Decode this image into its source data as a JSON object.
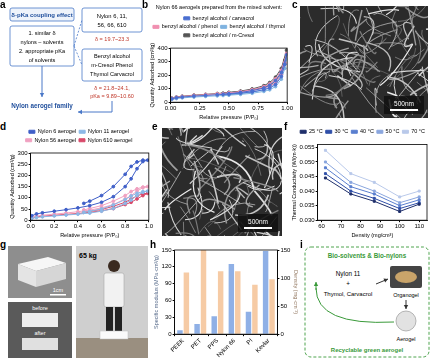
{
  "chart_data": [
    {
      "panel": "b",
      "type": "line",
      "title": "Nylon 66 aerogels prepared from the mixed solvent:",
      "x_label": "Relative pressure (P/P₀)",
      "y_label": "Quantity Adsorbed (cm³/g)",
      "x": [
        0.01,
        0.05,
        0.1,
        0.2,
        0.3,
        0.4,
        0.5,
        0.6,
        0.7,
        0.8,
        0.85,
        0.9,
        0.95,
        0.98,
        0.995,
        0.95,
        0.9,
        0.85,
        0.8,
        0.7,
        0.6,
        0.5,
        0.45
      ],
      "series": [
        {
          "name": "benzyl alcohol / carvacrol",
          "color": "#4a6fd0",
          "values": [
            25,
            33,
            38,
            45,
            50,
            55,
            60,
            67,
            76,
            92,
            105,
            130,
            190,
            280,
            350,
            220,
            160,
            125,
            105,
            85,
            72,
            63,
            58
          ]
        },
        {
          "name": "benzyl alcohol / phenol",
          "color": "#f08fb0",
          "values": [
            28,
            36,
            42,
            50,
            56,
            62,
            68,
            76,
            86,
            104,
            118,
            145,
            205,
            290,
            360,
            235,
            172,
            135,
            115,
            92,
            78,
            68,
            62
          ]
        },
        {
          "name": "benzyl alcohol / thymol",
          "color": "#7fb3e0",
          "values": [
            20,
            27,
            32,
            38,
            43,
            47,
            52,
            58,
            66,
            80,
            92,
            115,
            170,
            250,
            320,
            200,
            145,
            110,
            92,
            74,
            63,
            55,
            50
          ]
        },
        {
          "name": "benzyl alcohol / m-Cresol",
          "color": "#555555",
          "values": [
            30,
            38,
            44,
            52,
            58,
            64,
            71,
            80,
            91,
            110,
            126,
            155,
            220,
            310,
            385,
            250,
            185,
            145,
            122,
            98,
            82,
            72,
            66
          ]
        }
      ],
      "xlim": [
        0,
        1
      ],
      "xticks": [
        {
          "value": 0,
          "label": "0.00"
        },
        {
          "value": 0.25,
          "label": "0.25"
        },
        {
          "value": 0.5,
          "label": "0.50"
        },
        {
          "value": 0.75,
          "label": "0.75"
        },
        {
          "value": 1,
          "label": "1.00"
        }
      ],
      "ylim": [
        0,
        400
      ],
      "yticks": [
        0,
        100,
        200,
        300,
        400
      ],
      "marker": "circle",
      "grid": false,
      "legend": "top"
    },
    {
      "panel": "d",
      "type": "line",
      "x_label": "Relative pressure (P/P₀)",
      "y_label": "Quantity Adsorbed (cm³/g)",
      "x": [
        0.01,
        0.05,
        0.1,
        0.2,
        0.3,
        0.4,
        0.5,
        0.6,
        0.7,
        0.8,
        0.85,
        0.9,
        0.95,
        0.99,
        0.95,
        0.9,
        0.85,
        0.8,
        0.7,
        0.6,
        0.5,
        0.45
      ],
      "series": [
        {
          "name": "Nylon 6 aerogel",
          "color": "#3f5fc8",
          "values": [
            20,
            28,
            33,
            40,
            47,
            55,
            65,
            80,
            105,
            150,
            185,
            230,
            262,
            268,
            268,
            260,
            240,
            205,
            150,
            110,
            85,
            75
          ]
        },
        {
          "name": "Nylon 11 aerogel",
          "color": "#8cb8e6",
          "values": [
            8,
            12,
            15,
            19,
            23,
            27,
            32,
            40,
            52,
            75,
            90,
            110,
            125,
            130,
            128,
            120,
            108,
            92,
            68,
            50,
            40,
            35
          ]
        },
        {
          "name": "Nylon 56 aerogel",
          "color": "#f0a0c0",
          "values": [
            12,
            18,
            22,
            27,
            32,
            38,
            45,
            55,
            70,
            95,
            110,
            130,
            145,
            150,
            148,
            140,
            128,
            110,
            85,
            65,
            52,
            46
          ]
        },
        {
          "name": "Nylon 610 aerogel",
          "color": "#d84a6a",
          "values": [
            10,
            15,
            18,
            22,
            26,
            30,
            35,
            42,
            52,
            70,
            80,
            95,
            110,
            120,
            118,
            108,
            95,
            80,
            62,
            48,
            40,
            35
          ]
        }
      ],
      "xlim": [
        0,
        1
      ],
      "xticks": [
        {
          "value": 0,
          "label": "0.0"
        },
        {
          "value": 0.2,
          "label": "0.2"
        },
        {
          "value": 0.4,
          "label": "0.4"
        },
        {
          "value": 0.6,
          "label": "0.6"
        },
        {
          "value": 0.8,
          "label": "0.8"
        },
        {
          "value": 1,
          "label": "1.0"
        }
      ],
      "ylim": [
        0,
        300
      ],
      "yticks": [
        0,
        50,
        100,
        150,
        200,
        250,
        300
      ],
      "marker": "circle",
      "grid": false,
      "legend": "top"
    },
    {
      "panel": "f",
      "type": "line",
      "x_label": "Density (mg/cm³)",
      "y_label": "Thermal Conductivity (W/(m·k))",
      "x": [
        62,
        75,
        87,
        100,
        110
      ],
      "series": [
        {
          "name": "25 °C",
          "color": "#1f2f6b",
          "values": [
            0.0445,
            0.039,
            0.0365,
            0.033,
            0.0355
          ]
        },
        {
          "name": "30 °C",
          "color": "#2f4fa8",
          "values": [
            0.046,
            0.04,
            0.0375,
            0.034,
            0.036
          ]
        },
        {
          "name": "40 °C",
          "color": "#5a7fcf",
          "values": [
            0.048,
            0.0415,
            0.039,
            0.035,
            0.037
          ]
        },
        {
          "name": "50 °C",
          "color": "#8aa6de",
          "values": [
            0.05,
            0.043,
            0.04,
            0.036,
            0.038
          ]
        },
        {
          "name": "70 °C",
          "color": "#b9c9ea",
          "values": [
            0.054,
            0.046,
            0.043,
            0.038,
            0.04
          ]
        }
      ],
      "xlim": [
        58,
        114
      ],
      "xticks": [
        60,
        70,
        80,
        90,
        100,
        110
      ],
      "ylim": [
        0.03,
        0.056
      ],
      "yticks": [
        {
          "value": 0.03,
          "label": "0.030"
        },
        {
          "value": 0.035,
          "label": "0.035"
        },
        {
          "value": 0.04,
          "label": "0.040"
        },
        {
          "value": 0.045,
          "label": "0.045"
        },
        {
          "value": 0.05,
          "label": "0.050"
        },
        {
          "value": 0.055,
          "label": "0.055"
        }
      ],
      "marker": "square",
      "grid": false,
      "legend": "top-right"
    },
    {
      "panel": "h",
      "type": "bar",
      "categories": [
        "PEEK",
        "PET",
        "PPS",
        "Nylon 66",
        "PI",
        "Kevlar"
      ],
      "y_label": "Specific modulus (MPa·cm³/g)",
      "y2_label": "Density (mg·cm⁻³)",
      "series": [
        {
          "color": "#8fb0e6",
          "axis": "y",
          "values": [
            7,
            18,
            32,
            125,
            40,
            148
          ]
        },
        {
          "color": "#f6cba5",
          "axis": "y2",
          "values": [
            110,
            150,
            112,
            112,
            88,
            98
          ]
        }
      ],
      "ylim": [
        0,
        150
      ],
      "yticks": [
        0,
        30,
        60,
        90,
        120,
        150
      ],
      "y2lim": [
        0,
        150
      ],
      "y2ticks": [
        0,
        50,
        100,
        150
      ],
      "grid": false
    }
  ],
  "panels": {
    "a": {
      "label": "a",
      "title": "δ-pKa coupling effect",
      "criteria": [
        "1. similar δ",
        "nylons – solvents",
        "2. appropriate pKa",
        "of solvents"
      ],
      "result": "Nylon aerogel family",
      "nylons": [
        "Nylon 6, 11,",
        "56, 66, 610"
      ],
      "nylons_param": "δ = 19.7~23.3",
      "solvents": [
        "Benzyl alcohol",
        "m-Cresol  Phenol",
        "Thymol  Carvacrol"
      ],
      "solvents_param": [
        "δ = 21.8~24.1,",
        "pKa = 9.89~10.60"
      ]
    },
    "c": {
      "label": "c",
      "scale_bar": "500nm"
    },
    "e": {
      "label": "e",
      "scale_bar": "500nm"
    },
    "g": {
      "label": "g",
      "scale": "1cm",
      "load": "65 kg",
      "before": "before",
      "after": "after"
    },
    "i": {
      "label": "i",
      "header": "Bio-solvents & Bio-nylons",
      "nylon": "Nylon 11",
      "plus": "+",
      "solvents": "Thymol, Carvacrol",
      "organogel": "Organogel",
      "aerogel": "Aerogel",
      "footer": "Recyclable green aerogel"
    }
  }
}
